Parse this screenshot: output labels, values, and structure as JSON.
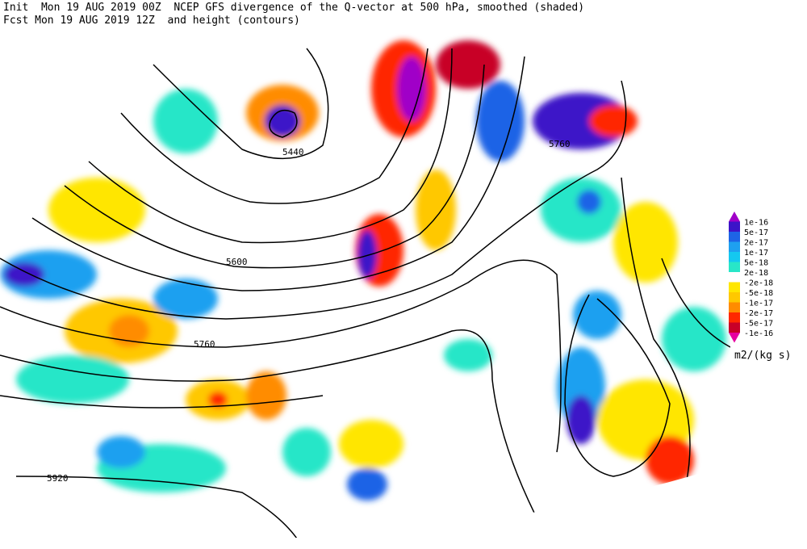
{
  "header": {
    "line1": "Init  Mon 19 AUG 2019 00Z  NCEP GFS divergence of the Q-vector at 500 hPa, smoothed (shaded)",
    "line2": "Fcst Mon 19 AUG 2019 12Z  and height (contours)"
  },
  "contour_labels": [
    "5440",
    "5600",
    "5760",
    "5760",
    "5920"
  ],
  "legend": {
    "labels": [
      "1e-16",
      "5e-17",
      "2e-17",
      "1e-17",
      "5e-18",
      "2e-18",
      "-2e-18",
      "-5e-18",
      "-1e-17",
      "-2e-17",
      "-5e-17",
      "-1e-16"
    ],
    "colors": [
      "#a000c8",
      "#3c14c8",
      "#1e64e6",
      "#1ea0f0",
      "#14c8f0",
      "#28e6c8",
      "#ffffff",
      "#ffe600",
      "#ffc800",
      "#ff8c00",
      "#ff2800",
      "#c80028",
      "#e600a0"
    ],
    "unit": "m2/(kg s)"
  }
}
